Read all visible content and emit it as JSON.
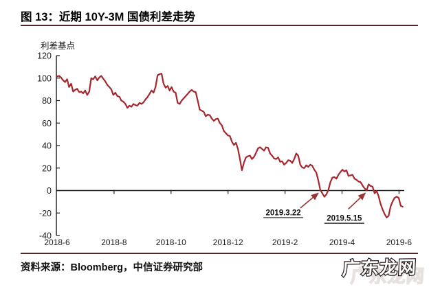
{
  "title": "图 13：近期 10Y-3M 国债利差走势",
  "source_line": "资料来源：Bloomberg，中信证券研究部",
  "watermark": "广东龙网",
  "colors": {
    "rule": "#53282b",
    "line": "#a6262e",
    "axis": "#1a1a1a",
    "tick_text": "#1a1a1a",
    "arrow": "#993333",
    "annotation_text": "#111111"
  },
  "chart_data": {
    "type": "line",
    "title": "近期 10Y-3M 国债利差走势",
    "xlabel": "",
    "ylabel": "利差基点",
    "ylim": [
      -40,
      120
    ],
    "yticks": [
      120,
      100,
      80,
      60,
      40,
      20,
      0,
      -20,
      -40
    ],
    "xticks": [
      {
        "t": 0,
        "label": "2018-6"
      },
      {
        "t": 2,
        "label": "2018-8"
      },
      {
        "t": 4,
        "label": "2018-10"
      },
      {
        "t": 6,
        "label": "2018-12"
      },
      {
        "t": 8,
        "label": "2019-2"
      },
      {
        "t": 10,
        "label": "2019-4"
      },
      {
        "t": 12,
        "label": "2019-6"
      }
    ],
    "x_unit": "months since 2018-06",
    "t_start": 0,
    "t_end": 12.13,
    "grid": false,
    "legend": "none",
    "series_name": "10Y-3M 国债利差 (bp)",
    "values": [
      101.5,
      102,
      100.5,
      98,
      96.5,
      99,
      92,
      95,
      88,
      89.5,
      90.5,
      87.5,
      88,
      86.5,
      89,
      85,
      88,
      100,
      99,
      101.5,
      98,
      100.5,
      102,
      99.5,
      97,
      94,
      92,
      90,
      85,
      87,
      84,
      83.5,
      80,
      79,
      77,
      73.5,
      75.5,
      74.5,
      77,
      76,
      75.5,
      78,
      77,
      78.5,
      81,
      83,
      86,
      89,
      87,
      92,
      102.5,
      103.5,
      104,
      95,
      91.5,
      93,
      89,
      92,
      88,
      87,
      78,
      77,
      80,
      82,
      84,
      86,
      88,
      89.5,
      88,
      87.5,
      80,
      72,
      71,
      70,
      66,
      67.5,
      67,
      64,
      62,
      63.5,
      64,
      60,
      58,
      53,
      51,
      49,
      48.5,
      43.5,
      40.5,
      42.5,
      37,
      28,
      18,
      25,
      29.5,
      30.5,
      31,
      28,
      30,
      33.5,
      37.5,
      38.5,
      37,
      35.5,
      38.5,
      38,
      33,
      31,
      28.5,
      28,
      29.5,
      25.5,
      26,
      23,
      24.5,
      27,
      26.5,
      24.5,
      28,
      33,
      31,
      23,
      20.5,
      20,
      22.5,
      21,
      23,
      22,
      18.5,
      16,
      9,
      0.5,
      -2.5,
      -5.5,
      -3.5,
      0.5,
      7.5,
      11.5,
      12,
      10.5,
      14,
      16.5,
      18.5,
      17,
      18,
      13,
      13.5,
      14,
      10.5,
      9.5,
      8,
      7.5,
      4.5,
      2,
      0,
      5.5,
      4,
      3.5,
      -2.5,
      -0.5,
      -5,
      -12,
      -17,
      -21,
      -24,
      -22.5,
      -14,
      -9.5,
      -6.5,
      -5.5,
      -6.5,
      -13.5,
      -14.5
    ],
    "annotations": [
      {
        "label": "2019.3.22",
        "text_t": 7.94,
        "text_v": -19.5,
        "arrow_from_t": 8.54,
        "arrow_from_v": -15.5,
        "arrow_to_t": 9.17,
        "arrow_to_v": -2.2
      },
      {
        "label": "2019.5.15",
        "text_t": 10.08,
        "text_v": -24.5,
        "arrow_from_t": 10.22,
        "arrow_from_v": -16.5,
        "arrow_to_t": 10.82,
        "arrow_to_v": -2.2
      }
    ]
  }
}
